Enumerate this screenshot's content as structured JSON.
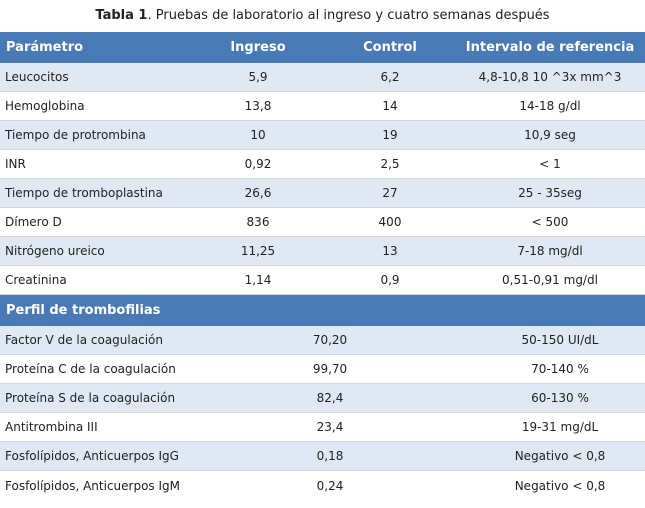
{
  "caption": {
    "label": "Tabla 1",
    "text": ". Pruebas de laboratorio  al ingreso y cuatro semanas después"
  },
  "header": {
    "col1": "Parámetro",
    "col2": "Ingreso",
    "col3": "Control",
    "col4": "Intervalo de referencia"
  },
  "rows": [
    {
      "param": "Leucocitos",
      "ingreso": "5,9",
      "control": "6,2",
      "ref": "4,8-10,8 10 ^3x mm^3"
    },
    {
      "param": "Hemoglobina",
      "ingreso": "13,8",
      "control": "14",
      "ref": "14-18 g/dl"
    },
    {
      "param": "Tiempo de protrombina",
      "ingreso": "10",
      "control": "19",
      "ref": "10,9 seg"
    },
    {
      "param": "INR",
      "ingreso": "0,92",
      "control": "2,5",
      "ref": "< 1"
    },
    {
      "param": "Tiempo de tromboplastina",
      "ingreso": "26,6",
      "control": "27",
      "ref": "25 - 35seg"
    },
    {
      "param": "Dímero D",
      "ingreso": "836",
      "control": "400",
      "ref": "< 500"
    },
    {
      "param": "Nitrógeno ureico",
      "ingreso": "11,25",
      "control": "13",
      "ref": "7-18 mg/dl"
    },
    {
      "param": "Creatinina",
      "ingreso": "1,14",
      "control": "0,9",
      "ref": "0,51-0,91 mg/dl"
    }
  ],
  "section2": {
    "title": "Perfil de trombofilias"
  },
  "rows2": [
    {
      "param": "Factor V de la coagulación",
      "value": "70,20",
      "ref": "50-150 UI/dL"
    },
    {
      "param": "Proteína C de la coagulación",
      "value": "99,70",
      "ref": "70-140 %"
    },
    {
      "param": "Proteína S de la coagulación",
      "value": "82,4",
      "ref": "60-130 %"
    },
    {
      "param": "Antitrombina III",
      "value": "23,4",
      "ref": "19-31 mg/dL"
    },
    {
      "param": "Fosfolípidos, Anticuerpos IgG",
      "value": "0,18",
      "ref": "Negativo < 0,8"
    },
    {
      "param": "Fosfolípidos, Anticuerpos IgM",
      "value": "0,24",
      "ref": "Negativo < 0,8"
    }
  ],
  "colors": {
    "header_bg": "#4a7ab5",
    "alt_row": "#dfe8f3"
  }
}
